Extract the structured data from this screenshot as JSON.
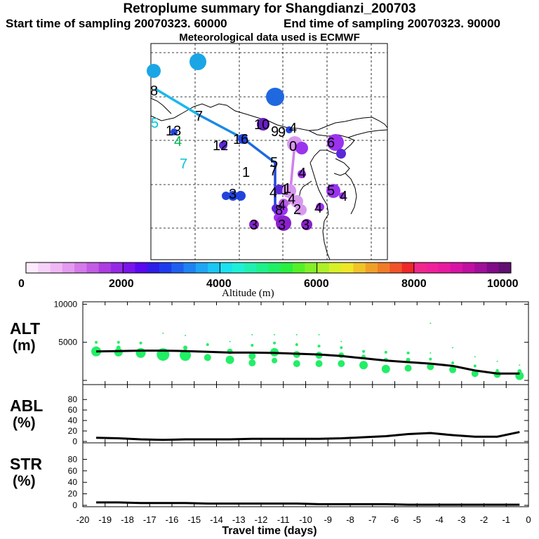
{
  "header": {
    "title": "Retroplume summary for Shangdianzi_200703",
    "start_label": "Start time of sampling 20070323. 60000",
    "end_label": "End time of sampling 20070323. 90000",
    "met_label": "Meteorological data used is ECMWF"
  },
  "colorbar": {
    "ticks": [
      "0",
      "2000",
      "4000",
      "6000",
      "8000",
      "10000"
    ],
    "label": "Altitude (m)"
  },
  "panels": {
    "alt": {
      "label_top": "ALT",
      "label_bottom": "(m)"
    },
    "abl": {
      "label_top": "ABL",
      "label_bottom": "(%)"
    },
    "str": {
      "label_top": "STR",
      "label_bottom": "(%)"
    }
  },
  "xaxis": {
    "label": "Travel time (days)",
    "ticks": [
      "-20",
      "-19",
      "-18",
      "-17",
      "-16",
      "-15",
      "-14",
      "-13",
      "-12",
      "-11",
      "-10",
      "-9",
      "-8",
      "-7",
      "-6",
      "-5",
      "-4",
      "-3",
      "-2",
      "-1",
      "0"
    ]
  },
  "chart_data": [
    {
      "type": "line",
      "name": "ALT",
      "title": "ALT (m)",
      "xlabel": "Travel time (days)",
      "ylabel": "ALT (m)",
      "xlim": [
        -20,
        0
      ],
      "ylim": [
        0,
        10000
      ],
      "yticks": [
        "0",
        "5000",
        "10000"
      ],
      "x": [
        -19.4,
        -18.4,
        -17.4,
        -16.4,
        -15.4,
        -14.4,
        -13.4,
        -12.4,
        -11.4,
        -10.4,
        -9.4,
        -8.4,
        -7.4,
        -6.4,
        -5.4,
        -4.4,
        -3.4,
        -2.4,
        -1.4,
        -0.4
      ],
      "mean": [
        3800,
        3850,
        3900,
        3900,
        3850,
        3750,
        3650,
        3650,
        3600,
        3500,
        3400,
        3200,
        2900,
        2600,
        2400,
        2200,
        1900,
        1300,
        900,
        900
      ],
      "scatter_points": [
        {
          "x": -19.4,
          "y": 3800,
          "s": 7
        },
        {
          "x": -19.4,
          "y": 5000,
          "s": 2
        },
        {
          "x": -19.4,
          "y": 4200,
          "s": 3
        },
        {
          "x": -18.4,
          "y": 3700,
          "s": 6
        },
        {
          "x": -18.4,
          "y": 5000,
          "s": 2
        },
        {
          "x": -18.4,
          "y": 4300,
          "s": 3
        },
        {
          "x": -17.4,
          "y": 3600,
          "s": 7
        },
        {
          "x": -17.4,
          "y": 4900,
          "s": 2
        },
        {
          "x": -16.4,
          "y": 3400,
          "s": 9
        },
        {
          "x": -16.4,
          "y": 6200,
          "s": 1
        },
        {
          "x": -15.4,
          "y": 3300,
          "s": 8
        },
        {
          "x": -15.4,
          "y": 4300,
          "s": 3
        },
        {
          "x": -15.4,
          "y": 5900,
          "s": 1
        },
        {
          "x": -14.4,
          "y": 3000,
          "s": 5
        },
        {
          "x": -14.4,
          "y": 4700,
          "s": 2
        },
        {
          "x": -13.4,
          "y": 2700,
          "s": 6
        },
        {
          "x": -13.4,
          "y": 3800,
          "s": 4
        },
        {
          "x": -13.4,
          "y": 5100,
          "s": 1
        },
        {
          "x": -12.4,
          "y": 2300,
          "s": 5
        },
        {
          "x": -12.4,
          "y": 3200,
          "s": 5
        },
        {
          "x": -12.4,
          "y": 4600,
          "s": 2
        },
        {
          "x": -12.4,
          "y": 6000,
          "s": 1
        },
        {
          "x": -11.4,
          "y": 3700,
          "s": 6
        },
        {
          "x": -11.4,
          "y": 2600,
          "s": 4
        },
        {
          "x": -11.4,
          "y": 4900,
          "s": 2
        },
        {
          "x": -11.4,
          "y": 6000,
          "s": 1
        },
        {
          "x": -10.4,
          "y": 2200,
          "s": 5
        },
        {
          "x": -10.4,
          "y": 3400,
          "s": 5
        },
        {
          "x": -10.4,
          "y": 4700,
          "s": 2
        },
        {
          "x": -10.4,
          "y": 6000,
          "s": 1
        },
        {
          "x": -9.4,
          "y": 2200,
          "s": 5
        },
        {
          "x": -9.4,
          "y": 3300,
          "s": 5
        },
        {
          "x": -9.4,
          "y": 4500,
          "s": 2
        },
        {
          "x": -9.4,
          "y": 6000,
          "s": 1
        },
        {
          "x": -8.4,
          "y": 2200,
          "s": 5
        },
        {
          "x": -8.4,
          "y": 3300,
          "s": 4
        },
        {
          "x": -8.4,
          "y": 4300,
          "s": 2
        },
        {
          "x": -8.4,
          "y": 5100,
          "s": 1
        },
        {
          "x": -7.4,
          "y": 2000,
          "s": 6
        },
        {
          "x": -7.4,
          "y": 3100,
          "s": 3
        },
        {
          "x": -7.4,
          "y": 3800,
          "s": 2
        },
        {
          "x": -6.4,
          "y": 1500,
          "s": 6
        },
        {
          "x": -6.4,
          "y": 2700,
          "s": 3
        },
        {
          "x": -6.4,
          "y": 3700,
          "s": 2
        },
        {
          "x": -5.4,
          "y": 1600,
          "s": 5
        },
        {
          "x": -5.4,
          "y": 2700,
          "s": 3
        },
        {
          "x": -5.4,
          "y": 3600,
          "s": 2
        },
        {
          "x": -4.4,
          "y": 1800,
          "s": 5
        },
        {
          "x": -4.4,
          "y": 2800,
          "s": 2
        },
        {
          "x": -4.4,
          "y": 3600,
          "s": 1
        },
        {
          "x": -4.4,
          "y": 7500,
          "s": 1
        },
        {
          "x": -3.4,
          "y": 1400,
          "s": 5
        },
        {
          "x": -3.4,
          "y": 2300,
          "s": 2
        },
        {
          "x": -3.4,
          "y": 4300,
          "s": 1
        },
        {
          "x": -2.4,
          "y": 900,
          "s": 5
        },
        {
          "x": -2.4,
          "y": 1900,
          "s": 2
        },
        {
          "x": -2.4,
          "y": 3100,
          "s": 1
        },
        {
          "x": -1.4,
          "y": 800,
          "s": 5
        },
        {
          "x": -1.4,
          "y": 1300,
          "s": 2
        },
        {
          "x": -1.4,
          "y": 2500,
          "s": 1
        },
        {
          "x": -0.4,
          "y": 600,
          "s": 6
        },
        {
          "x": -0.4,
          "y": 1200,
          "s": 3
        },
        {
          "x": -0.4,
          "y": 2000,
          "s": 1
        }
      ]
    },
    {
      "type": "line",
      "name": "ABL",
      "title": "ABL (%)",
      "ylabel": "ABL (%)",
      "xlim": [
        -20,
        0
      ],
      "ylim": [
        0,
        100
      ],
      "yticks": [
        "0",
        "20",
        "40",
        "60",
        "80"
      ],
      "x": [
        -19.4,
        -18.4,
        -17.4,
        -16.4,
        -15.4,
        -14.4,
        -13.4,
        -12.4,
        -11.4,
        -10.4,
        -9.4,
        -8.4,
        -7.4,
        -6.4,
        -5.4,
        -4.4,
        -3.4,
        -2.4,
        -1.4,
        -0.4
      ],
      "values": [
        7,
        6,
        4,
        3,
        4,
        4,
        4,
        5,
        5,
        5,
        5,
        6,
        8,
        10,
        14,
        16,
        12,
        9,
        9,
        18
      ]
    },
    {
      "type": "line",
      "name": "STR",
      "title": "STR (%)",
      "ylabel": "STR (%)",
      "xlim": [
        -20,
        0
      ],
      "ylim": [
        0,
        100
      ],
      "yticks": [
        "0",
        "20",
        "40",
        "60",
        "80"
      ],
      "x": [
        -19.4,
        -18.4,
        -17.4,
        -16.4,
        -15.4,
        -14.4,
        -13.4,
        -12.4,
        -11.4,
        -10.4,
        -9.4,
        -8.4,
        -7.4,
        -6.4,
        -5.4,
        -4.4,
        -3.4,
        -2.4,
        -1.4,
        -0.4
      ],
      "values": [
        5,
        5,
        4,
        4,
        4,
        3,
        3,
        3,
        3,
        3,
        2,
        2,
        2,
        2,
        1,
        1,
        1,
        1,
        1,
        1
      ]
    }
  ],
  "map": {
    "trajectory_labels": [
      {
        "text": "9",
        "color": "#1aa6e6"
      },
      {
        "text": "8",
        "color": "#1aa6e6"
      },
      {
        "text": "7",
        "color": "#1f68e0"
      },
      {
        "text": "8",
        "color": "#000000"
      },
      {
        "text": "7",
        "color": "#000000"
      },
      {
        "text": "5",
        "color": "#00c4d8"
      },
      {
        "text": "13",
        "color": "#000000"
      },
      {
        "text": "4",
        "color": "#00b050"
      },
      {
        "text": "7",
        "color": "#00c4d8"
      },
      {
        "text": "12",
        "color": "#000000"
      },
      {
        "text": "16",
        "color": "#000000"
      },
      {
        "text": "10",
        "color": "#000000"
      },
      {
        "text": "9",
        "color": "#000000"
      },
      {
        "text": "0",
        "color": "#000000"
      },
      {
        "text": "6",
        "color": "#000000"
      },
      {
        "text": "4",
        "color": "#000000"
      },
      {
        "text": "5",
        "color": "#000000"
      },
      {
        "text": "1",
        "color": "#000000"
      },
      {
        "text": "7",
        "color": "#000000"
      },
      {
        "text": "3",
        "color": "#000000"
      },
      {
        "text": "5",
        "color": "#000000"
      },
      {
        "text": "4",
        "color": "#000000"
      },
      {
        "text": "4",
        "color": "#000000"
      },
      {
        "text": "1",
        "color": "#000000"
      },
      {
        "text": "4",
        "color": "#000000"
      },
      {
        "text": "2",
        "color": "#000000"
      },
      {
        "text": "4",
        "color": "#000000"
      },
      {
        "text": "8",
        "color": "#000000"
      },
      {
        "text": "3",
        "color": "#000000"
      },
      {
        "text": "3",
        "color": "#000000"
      },
      {
        "text": "3",
        "color": "#000000"
      },
      {
        "text": "9",
        "color": "#000000"
      },
      {
        "text": "4",
        "color": "#000000"
      },
      {
        "text": "1",
        "color": "#000000"
      },
      {
        "text": "4",
        "color": "#000000"
      }
    ]
  }
}
